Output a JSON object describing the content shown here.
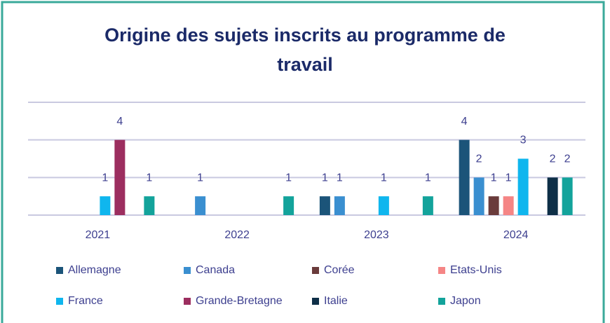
{
  "chart_data": {
    "type": "bar",
    "title_lines": [
      "Origine des sujets inscrits au programme de",
      "travail"
    ],
    "categories": [
      "2021",
      "2022",
      "2023",
      "2024"
    ],
    "series": [
      {
        "name": "Allemagne",
        "color": "#1b5479",
        "values": [
          null,
          null,
          1,
          4
        ]
      },
      {
        "name": "Canada",
        "color": "#3a8fd0",
        "values": [
          null,
          1,
          1,
          2
        ]
      },
      {
        "name": "Corée",
        "color": "#6a3b3b",
        "values": [
          null,
          null,
          null,
          1
        ]
      },
      {
        "name": "Etats-Unis",
        "color": "#f58585",
        "values": [
          null,
          null,
          null,
          1
        ]
      },
      {
        "name": "France",
        "color": "#0fb6ee",
        "values": [
          1,
          null,
          1,
          3
        ]
      },
      {
        "name": "Grande-Bretagne",
        "color": "#9c2e5f",
        "values": [
          4,
          null,
          null,
          null
        ]
      },
      {
        "name": "Italie",
        "color": "#0e2f47",
        "values": [
          null,
          null,
          null,
          2
        ]
      },
      {
        "name": "Japon",
        "color": "#13a39b",
        "values": [
          1,
          1,
          1,
          2
        ]
      }
    ],
    "ylim": [
      0,
      6
    ],
    "yticks": [
      0,
      2,
      4,
      6
    ],
    "grid": true
  }
}
